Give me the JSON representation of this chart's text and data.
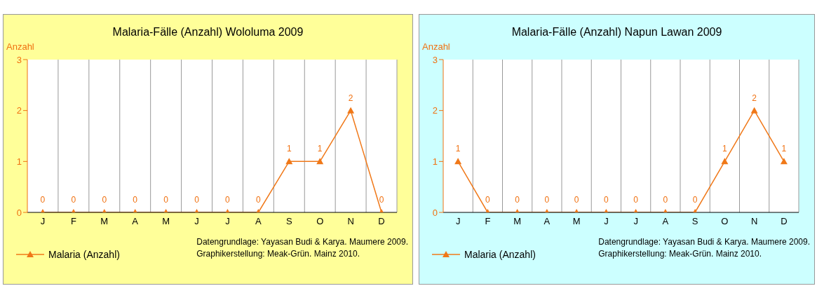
{
  "chart_data": [
    {
      "type": "line",
      "title": "Malaria-Fälle (Anzahl) Wololuma 2009",
      "ylabel": "Anzahl",
      "categories": [
        "J",
        "F",
        "M",
        "A",
        "M",
        "J",
        "J",
        "A",
        "S",
        "O",
        "N",
        "D"
      ],
      "series": [
        {
          "name": "Malaria (Anzahl)",
          "color": "#f07818",
          "values": [
            0,
            0,
            0,
            0,
            0,
            0,
            0,
            0,
            1,
            1,
            2,
            0
          ]
        }
      ],
      "ylim": [
        0,
        3
      ],
      "yticks": [
        0,
        1,
        2,
        3
      ],
      "grid": "x",
      "legend": "bottom left",
      "marker": "triangle",
      "data_labels": true,
      "annotations": [
        "Datengrundlage: Yayasan Budi & Karya. Maumere 2009.",
        "Graphikerstellung: Meak-Grün. Mainz 2010."
      ]
    },
    {
      "type": "line",
      "title": "Malaria-Fälle (Anzahl) Napun Lawan 2009",
      "ylabel": "Anzahl",
      "categories": [
        "J",
        "F",
        "M",
        "A",
        "M",
        "J",
        "J",
        "A",
        "S",
        "O",
        "N",
        "D"
      ],
      "series": [
        {
          "name": "Malaria (Anzahl)",
          "color": "#f07818",
          "values": [
            1,
            0,
            0,
            0,
            0,
            0,
            0,
            0,
            0,
            1,
            2,
            1
          ]
        }
      ],
      "ylim": [
        0,
        3
      ],
      "yticks": [
        0,
        1,
        2,
        3
      ],
      "grid": "x",
      "legend": "bottom left",
      "marker": "triangle",
      "data_labels": true,
      "annotations": [
        "Datengrundlage: Yayasan Budi & Karya. Maumere 2009.",
        "Graphikerstellung: Meak-Grün. Mainz 2010."
      ]
    }
  ]
}
